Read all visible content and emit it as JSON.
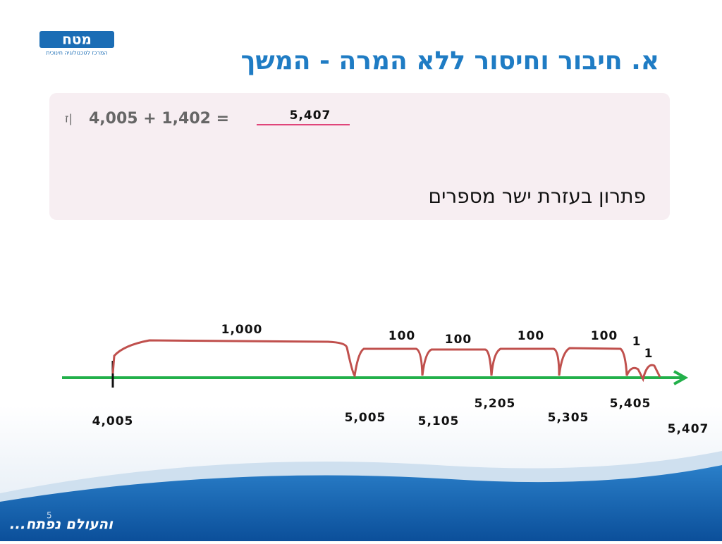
{
  "logo": {
    "name": "מטח",
    "tagline": "המרכז לטכנולוגיה חינוכית"
  },
  "title": "א. חיבור וחיסור ללא המרה - המשך",
  "exercise": {
    "marker": "ז|",
    "expression": "4,005 + 1,402 =",
    "answer": "5,407"
  },
  "caption": "פתרון בעזרת ישר מספרים",
  "number_line": {
    "points": [
      "4,005",
      "5,005",
      "5,105",
      "5,205",
      "5,305",
      "5,405",
      "5,407"
    ],
    "jumps": [
      "1,000",
      "100",
      "100",
      "100",
      "100",
      "1",
      "1"
    ]
  },
  "slide_number": "5",
  "footer": "והעולם נפתח..."
}
